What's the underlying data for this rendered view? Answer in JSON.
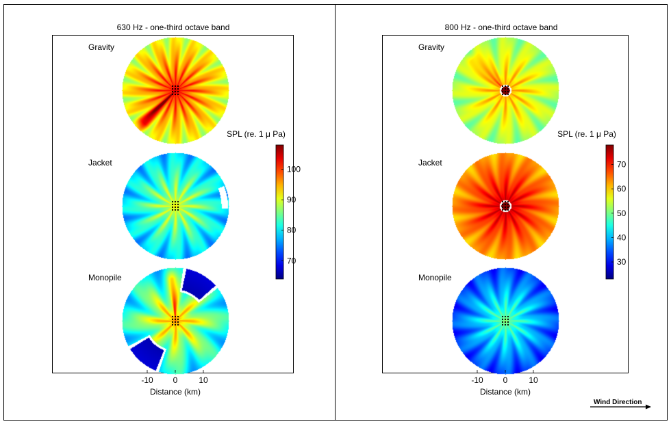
{
  "chart_data": [
    {
      "type": "heatmap",
      "title": "630 Hz - one-third octave band",
      "xlabel": "Distance (km)",
      "ylabel": "",
      "x_ticks": [
        "-10",
        "0",
        "10"
      ],
      "colorbar": {
        "label": "SPL (re. 1 μ Pa)",
        "range": [
          64,
          108
        ],
        "ticks": [
          70,
          80,
          90,
          100
        ],
        "tick_labels": [
          "70",
          "80",
          "90",
          "100"
        ],
        "colormap": "jet"
      },
      "panels": [
        {
          "name": "Gravity",
          "center_value": 104,
          "edge_value": 90,
          "spokes": 16,
          "spoke_gain": 4,
          "ridges": [
            {
              "angle_deg": 225,
              "gain": 10,
              "width": 0.1,
              "extent": 0.85
            }
          ]
        },
        {
          "name": "Jacket",
          "center_value": 92,
          "edge_value": 78,
          "spokes": 12,
          "spoke_gain": 4,
          "white_contours": [
            {
              "angle_deg": 10,
              "radius": 0.92
            }
          ]
        },
        {
          "name": "Monopile",
          "center_value": 97,
          "edge_value": 80,
          "spokes": 8,
          "spoke_gain": 5,
          "ridges": [
            {
              "angle_deg": 95,
              "gain": 8,
              "width": 0.08,
              "extent": 0.8
            }
          ],
          "low_regions": [
            {
              "angle_deg": 60,
              "value": 66
            },
            {
              "angle_deg": 230,
              "value": 66
            }
          ]
        }
      ]
    },
    {
      "type": "heatmap",
      "title": "800 Hz - one-third octave band",
      "xlabel": "Distance (km)",
      "ylabel": "",
      "x_ticks": [
        "-10",
        "0",
        "10"
      ],
      "colorbar": {
        "label": "SPL (re. 1 μ Pa)",
        "range": [
          23,
          78
        ],
        "ticks": [
          30,
          40,
          50,
          60,
          70
        ],
        "tick_labels": [
          "30",
          "40",
          "50",
          "60",
          "70"
        ],
        "colormap": "jet"
      },
      "panels": [
        {
          "name": "Gravity",
          "center_value": 64,
          "edge_value": 52,
          "spokes": 12,
          "spoke_gain": 4,
          "center_contour": true,
          "ridges": [
            {
              "angle_deg": 135,
              "gain": 9,
              "width": 0.1,
              "extent": 0.85
            }
          ]
        },
        {
          "name": "Jacket",
          "center_value": 77,
          "edge_value": 62,
          "spokes": 12,
          "spoke_gain": 3,
          "center_contour": true
        },
        {
          "name": "Monopile",
          "center_value": 52,
          "edge_value": 33,
          "spokes": 12,
          "spoke_gain": 4
        }
      ]
    }
  ],
  "footer": {
    "wind_direction_label": "Wind Direction"
  }
}
